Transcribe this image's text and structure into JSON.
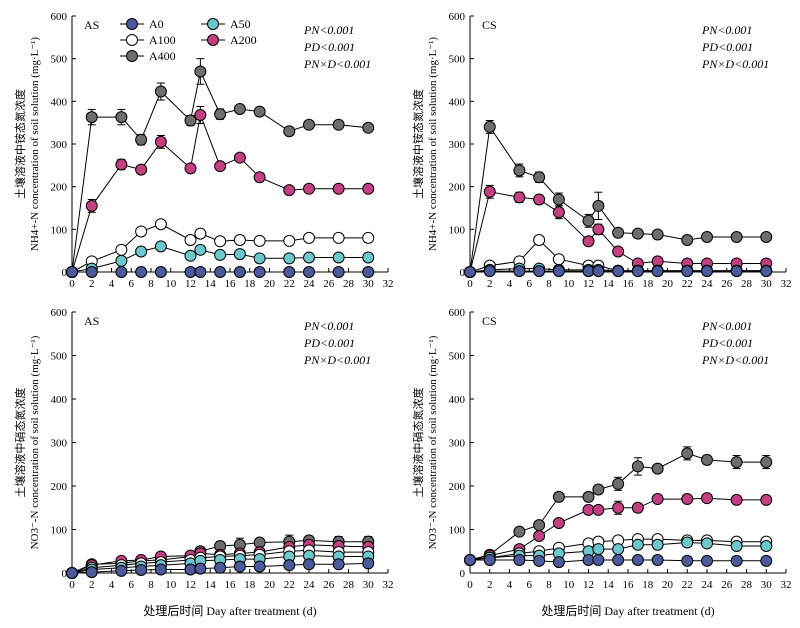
{
  "figure": {
    "xlabel": "处理后时间 Day after treatment (d)",
    "legend": [
      "A0",
      "A50",
      "A100",
      "A200",
      "A400"
    ]
  },
  "chart_data": [
    {
      "type": "line",
      "panel_label": "AS",
      "ylabel_cn": "土壤溶液中铵态氮浓度",
      "ylabel_en": "NH4+-N concentration of soil solution (mg·L⁻¹)",
      "xlim": [
        0,
        32
      ],
      "ylim": [
        0,
        600
      ],
      "xticks": [
        0,
        2,
        4,
        6,
        8,
        10,
        12,
        14,
        16,
        18,
        20,
        22,
        24,
        26,
        28,
        30,
        32
      ],
      "yticks": [
        0,
        100,
        200,
        300,
        400,
        500,
        600
      ],
      "stats": [
        "PN<0.001",
        "PD<0.001",
        "PN×D<0.001"
      ],
      "x": [
        0,
        2,
        5,
        7,
        9,
        12,
        13,
        15,
        17,
        19,
        22,
        24,
        27,
        30
      ],
      "series": [
        {
          "name": "A0",
          "color": "#4a5a9a",
          "values": [
            0,
            0,
            0,
            0,
            0,
            0,
            0,
            0,
            0,
            0,
            0,
            0,
            0,
            0
          ],
          "err": [
            0,
            0,
            0,
            0,
            0,
            0,
            0,
            0,
            0,
            0,
            0,
            0,
            0,
            0
          ]
        },
        {
          "name": "A50",
          "color": "#6cc8cc",
          "values": [
            0,
            8,
            26,
            48,
            60,
            38,
            52,
            40,
            42,
            32,
            32,
            34,
            34,
            34
          ],
          "err": [
            0,
            0,
            0,
            0,
            5,
            6,
            6,
            4,
            0,
            0,
            0,
            0,
            0,
            0
          ]
        },
        {
          "name": "A100",
          "color": "#ffffff",
          "values": [
            0,
            25,
            52,
            95,
            112,
            75,
            90,
            72,
            75,
            73,
            73,
            80,
            80,
            80
          ],
          "err": [
            0,
            0,
            5,
            5,
            8,
            6,
            6,
            6,
            0,
            0,
            0,
            0,
            0,
            0
          ]
        },
        {
          "name": "A200",
          "color": "#c23f82",
          "values": [
            0,
            155,
            252,
            240,
            305,
            243,
            368,
            248,
            268,
            222,
            192,
            195,
            195,
            195
          ],
          "err": [
            0,
            15,
            12,
            8,
            15,
            0,
            20,
            0,
            0,
            0,
            0,
            0,
            0,
            0
          ]
        },
        {
          "name": "A400",
          "color": "#6d6d6d",
          "values": [
            0,
            363,
            363,
            310,
            423,
            355,
            470,
            370,
            382,
            376,
            330,
            345,
            345,
            338
          ],
          "err": [
            0,
            18,
            18,
            12,
            20,
            12,
            30,
            12,
            6,
            0,
            0,
            0,
            0,
            0
          ]
        }
      ]
    },
    {
      "type": "line",
      "panel_label": "CS",
      "ylabel_cn": "土壤溶液中铵态氮浓度",
      "ylabel_en": "NH4+-N concentration of soil solution (mg·L⁻¹)",
      "xlim": [
        0,
        32
      ],
      "ylim": [
        0,
        600
      ],
      "xticks": [
        0,
        2,
        4,
        6,
        8,
        10,
        12,
        14,
        16,
        18,
        20,
        22,
        24,
        26,
        28,
        30,
        32
      ],
      "yticks": [
        0,
        100,
        200,
        300,
        400,
        500,
        600
      ],
      "stats": [
        "PN<0.001",
        "PD<0.001",
        "PN×D<0.001"
      ],
      "x": [
        0,
        2,
        5,
        7,
        9,
        12,
        13,
        15,
        17,
        19,
        22,
        24,
        27,
        30
      ],
      "series": [
        {
          "name": "A0",
          "color": "#4a5a9a",
          "values": [
            0,
            2,
            2,
            2,
            2,
            2,
            2,
            2,
            2,
            2,
            2,
            2,
            2,
            2
          ],
          "err": [
            0,
            0,
            0,
            0,
            0,
            0,
            0,
            0,
            0,
            0,
            0,
            0,
            0,
            0
          ]
        },
        {
          "name": "A50",
          "color": "#6cc8cc",
          "values": [
            0,
            5,
            8,
            8,
            5,
            5,
            5,
            3,
            3,
            3,
            3,
            3,
            3,
            3
          ],
          "err": [
            0,
            0,
            0,
            0,
            0,
            0,
            0,
            0,
            0,
            0,
            0,
            0,
            0,
            0
          ]
        },
        {
          "name": "A100",
          "color": "#ffffff",
          "values": [
            0,
            15,
            25,
            75,
            30,
            15,
            15,
            3,
            3,
            3,
            3,
            3,
            3,
            3
          ],
          "err": [
            0,
            0,
            5,
            5,
            0,
            0,
            0,
            0,
            0,
            0,
            0,
            0,
            0,
            0
          ]
        },
        {
          "name": "A200",
          "color": "#c23f82",
          "values": [
            0,
            188,
            175,
            170,
            140,
            72,
            100,
            48,
            20,
            25,
            20,
            20,
            20,
            20
          ],
          "err": [
            0,
            15,
            12,
            10,
            15,
            0,
            12,
            0,
            0,
            0,
            0,
            0,
            0,
            0
          ]
        },
        {
          "name": "A400",
          "color": "#6d6d6d",
          "values": [
            0,
            340,
            238,
            222,
            170,
            120,
            155,
            92,
            90,
            88,
            75,
            82,
            82,
            82
          ],
          "err": [
            0,
            15,
            15,
            12,
            15,
            15,
            32,
            10,
            5,
            0,
            0,
            0,
            0,
            0
          ]
        }
      ]
    },
    {
      "type": "line",
      "panel_label": "AS",
      "ylabel_cn": "土壤溶液中硝态氮浓度",
      "ylabel_en": "NO3⁻-N concentration of soil solution (mg·L⁻¹)",
      "xlim": [
        0,
        32
      ],
      "ylim": [
        0,
        600
      ],
      "xticks": [
        0,
        2,
        4,
        6,
        8,
        10,
        12,
        14,
        16,
        18,
        20,
        22,
        24,
        26,
        28,
        30,
        32
      ],
      "yticks": [
        0,
        100,
        200,
        300,
        400,
        500,
        600
      ],
      "stats": [
        "PN<0.001",
        "PD<0.001",
        "PN×D<0.001"
      ],
      "x": [
        0,
        2,
        5,
        7,
        9,
        12,
        13,
        15,
        17,
        19,
        22,
        24,
        27,
        30
      ],
      "series": [
        {
          "name": "A0",
          "color": "#4a5a9a",
          "values": [
            0,
            2,
            5,
            7,
            8,
            8,
            10,
            12,
            15,
            15,
            18,
            20,
            20,
            22
          ],
          "err": [
            0,
            0,
            0,
            0,
            0,
            0,
            0,
            0,
            0,
            0,
            0,
            0,
            0,
            0
          ]
        },
        {
          "name": "A50",
          "color": "#6cc8cc",
          "values": [
            0,
            8,
            12,
            15,
            18,
            22,
            28,
            30,
            32,
            32,
            38,
            40,
            38,
            38
          ],
          "err": [
            0,
            0,
            0,
            0,
            0,
            0,
            0,
            0,
            0,
            0,
            0,
            0,
            0,
            0
          ]
        },
        {
          "name": "A100",
          "color": "#ffffff",
          "values": [
            0,
            12,
            18,
            22,
            25,
            30,
            35,
            38,
            40,
            42,
            50,
            52,
            48,
            48
          ],
          "err": [
            0,
            0,
            0,
            0,
            0,
            0,
            5,
            5,
            5,
            0,
            5,
            5,
            5,
            5
          ]
        },
        {
          "name": "A200",
          "color": "#c23f82",
          "values": [
            0,
            18,
            28,
            30,
            38,
            40,
            45,
            42,
            45,
            48,
            60,
            65,
            62,
            60
          ],
          "err": [
            0,
            0,
            0,
            0,
            0,
            0,
            5,
            5,
            5,
            0,
            8,
            8,
            8,
            8
          ]
        },
        {
          "name": "A400",
          "color": "#6d6d6d",
          "values": [
            0,
            20,
            22,
            28,
            30,
            38,
            50,
            62,
            65,
            70,
            72,
            75,
            72,
            72
          ],
          "err": [
            0,
            0,
            0,
            0,
            5,
            5,
            5,
            10,
            15,
            0,
            15,
            10,
            12,
            12
          ]
        }
      ]
    },
    {
      "type": "line",
      "panel_label": "CS",
      "ylabel_cn": "土壤溶液中硝态氮浓度",
      "ylabel_en": "NO3⁻-N concentration of soil solution (mg·L⁻¹)",
      "xlim": [
        0,
        32
      ],
      "ylim": [
        0,
        600
      ],
      "xticks": [
        0,
        2,
        4,
        6,
        8,
        10,
        12,
        14,
        16,
        18,
        20,
        22,
        24,
        26,
        28,
        30,
        32
      ],
      "yticks": [
        0,
        100,
        200,
        300,
        400,
        500,
        600
      ],
      "stats": [
        "PN<0.001",
        "PD<0.001",
        "PN×D<0.001"
      ],
      "x": [
        0,
        2,
        5,
        7,
        9,
        12,
        13,
        15,
        17,
        19,
        22,
        24,
        27,
        30
      ],
      "series": [
        {
          "name": "A0",
          "color": "#4a5a9a",
          "values": [
            30,
            30,
            30,
            28,
            25,
            30,
            30,
            30,
            30,
            30,
            28,
            28,
            28,
            28
          ],
          "err": [
            0,
            0,
            0,
            0,
            0,
            0,
            0,
            0,
            0,
            0,
            0,
            0,
            0,
            0
          ]
        },
        {
          "name": "A50",
          "color": "#6cc8cc",
          "values": [
            30,
            35,
            40,
            40,
            45,
            50,
            55,
            55,
            65,
            65,
            70,
            68,
            62,
            62
          ],
          "err": [
            0,
            0,
            0,
            0,
            0,
            0,
            5,
            5,
            0,
            0,
            0,
            0,
            0,
            0
          ]
        },
        {
          "name": "A100",
          "color": "#ffffff",
          "values": [
            30,
            35,
            45,
            50,
            58,
            68,
            72,
            75,
            78,
            78,
            75,
            75,
            72,
            72
          ],
          "err": [
            0,
            0,
            0,
            0,
            5,
            5,
            5,
            5,
            5,
            0,
            5,
            5,
            5,
            5
          ]
        },
        {
          "name": "A200",
          "color": "#c23f82",
          "values": [
            30,
            40,
            55,
            85,
            115,
            145,
            145,
            150,
            150,
            170,
            170,
            172,
            168,
            168
          ],
          "err": [
            0,
            0,
            0,
            0,
            8,
            8,
            8,
            15,
            10,
            0,
            5,
            5,
            5,
            5
          ]
        },
        {
          "name": "A400",
          "color": "#6d6d6d",
          "values": [
            30,
            42,
            95,
            110,
            175,
            175,
            192,
            205,
            245,
            240,
            275,
            260,
            255,
            255
          ],
          "err": [
            0,
            0,
            5,
            5,
            10,
            10,
            10,
            15,
            20,
            0,
            15,
            10,
            15,
            15
          ]
        }
      ]
    }
  ]
}
